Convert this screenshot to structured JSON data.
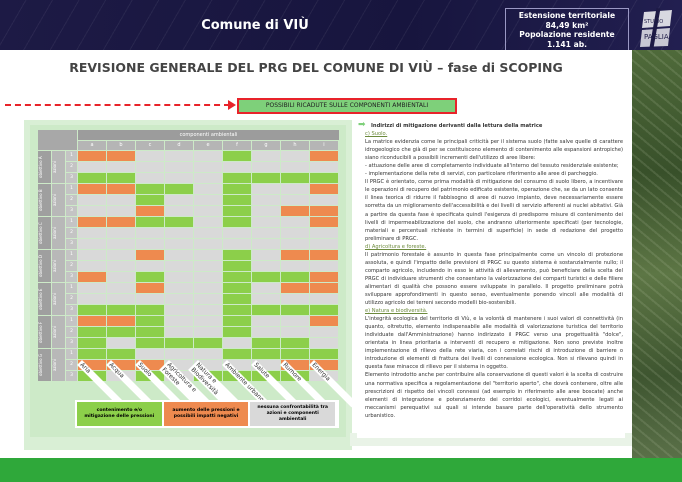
{
  "header": {
    "town": "Comune di VIÙ",
    "info": [
      "Estensione territoriale",
      "84,49 km²",
      "Popolazione residente",
      "1.141 ab."
    ],
    "logo": "STUDIO PAGLIA"
  },
  "title": "REVISIONE GENERALE DEL PRG DEL COMUNE DI VIÙ – fase di SCOPING",
  "banner": "POSSIBILI RICADUTE SULLE COMPONENTI AMBIENTALI",
  "matrix": {
    "header": "componenti ambientali",
    "columns": [
      "a",
      "b",
      "c",
      "d",
      "e",
      "f",
      "g",
      "h",
      "i"
    ],
    "column_labels": [
      "Aria",
      "Acqua",
      "Suolo",
      "Agricoltura e\nForeste",
      "Natura e\nBiodiversità",
      "Ambiente urbano",
      "Salute",
      "Rumore",
      "Energia"
    ],
    "actions_label": "azioni",
    "objectives": [
      {
        "label": "obiettivo A",
        "rows": [
          "OONNNGNNO",
          "NNNNNNNNN",
          "GGNNNGGGG"
        ]
      },
      {
        "label": "obiettivo B",
        "rows": [
          "OOGGNGNNO",
          "NNGNNGNNN",
          "NNONNGNOO"
        ]
      },
      {
        "label": "obiettivo C",
        "rows": [
          "OOGGNGNNO",
          "NNNNNNNNN",
          "NNNNNNNNN"
        ]
      },
      {
        "label": "obiettivo D",
        "rows": [
          "NNONNGNOO",
          "NNNNNGNNN",
          "ONGNNGGGO"
        ]
      },
      {
        "label": "obiettivo E",
        "rows": [
          "NNONNGNOO",
          "NNNNNGNNN",
          "GGGNNGGGG"
        ]
      },
      {
        "label": "obiettivo F",
        "rows": [
          "OOGNNGNNO",
          "GGGNNGNNN",
          "GNGGGNGGN"
        ]
      },
      {
        "label": "obiettivo G",
        "rows": [
          "GGNNNGGGG",
          "OOONNNNOO",
          "GNGNGGGGN"
        ]
      }
    ],
    "legend": [
      {
        "code": "G",
        "text": "contenimento e/o mitigazione delle pressioni"
      },
      {
        "code": "O",
        "text": "aumento delle pressioni e possibili impatti negativi"
      },
      {
        "code": "N",
        "text": "nessuna confrontabilità tra azioni e componenti ambientali"
      }
    ]
  },
  "text": {
    "heading": "Indirizzi di mitigazione derivanti dalla lettura della matrice",
    "s1": "c) Suolo.",
    "p1": "La matrice evidenzia come le principali criticità per il sistema suolo (fatte salve quelle di carattere idrogeologico che già di per se costituiscono elemento di contenimento alle espansioni antropiche) siano riconducibili a possibili incrementi dell'utilizzo di aree libere:",
    "p2": "- attuazione delle aree di completamento individuate all'interno del tessuto residenziale esistente;",
    "p3": "- implementazione della rete di servizi, con particolare riferimento alle aree di parcheggio.",
    "p4": "Il PRGC è orientato, come prima modalità di mitigazione del consumo di suolo libero, a incentivare le operazioni di recupero del patrimonio edificato esistente, operazione che, se da un lato consente il linea teorica di ridurre il fabbisogno di aree di nuovo impianto, deve necessariamente essere sorretta da un miglioramento dell'accessibilità e dei livelli di servizio afferenti ai nuclei abitativi. Già a partire da questa fase è specificata quindi l'esigenza di predisporre misure di contenimento dei livelli di impermeabilizzazione del suolo, che andranno ulteriormente specificati (per tecnologie, materiali e percentuali richieste in termini di superficie) in sede di redazione del progetto preliminare di PRGC.",
    "s2": "d) Agricoltura e foreste.",
    "p5": "Il patrimonio forestale è assunto in questa fase principalmente come un vincolo di protezione assoluta, e quindi l'impatto delle previsioni di PRGC su questo sistema è sostanzialmente nullo; il comparto agricolo, includendo in esso le attività di allevamento, può beneficiare della scelta del PRGC di individuare strumenti che consentano la valorizzazione dei comparti turistici e delle filiere alimentari di qualità che possono essere sviluppate in parallelo. Il progetto preliminare potrà sviluppare approfondimenti in questo senso, eventualmente ponendo vincoli alle modalità di utilizzo agricolo dei terreni secondo modelli bio-sostenibili.",
    "s3": "e) Natura e biodiversità.",
    "p6": "L'integrità ecologica del territorio di Viù, e la volontà di mantenere i suoi valori di connettività (in quanto, oltretutto, elemento indispensabile alle modalità di valorizzazione turistica del territorio individuate dall'Amministrazione) hanno indirizzato il PRGC verso una progettualità \"dolce\", orientata in linea prioritaria a interventi di recupero e mitigazione. Non sono previste inoltre implementazione di rilievo della rete viaria, con i correlati rischi di introduzione di barriere o introduzione di elementi di frattura dei livelli di connessione ecologica. Non si rilevano quindi in questa fase minacce di rilievo per il sistema in oggetto.",
    "p7": "Elemento introdotto anche per contribuire alla conservazione di questi valori è la scelta di costruire una normativa specifica a regolamentazione del \"territorio aperto\", che dovrà contenere, oltre alle prescrizioni di rispetto dei vincoli connessi (ad esempio in riferimento alle aree boscate) anche elementi di integrazione e potenziamento dei corridoi ecologici, eventualmente legati ai meccanismi perequativi sui quali si intende basare parte dell'operatività dello strumento urbanistico."
  },
  "colors": {
    "header": "#1d1a45",
    "green": "#8ccf4a",
    "orange": "#ee8a4f",
    "grey": "#d9d9d9",
    "footer": "#2fa83a",
    "accent": "#e8232a"
  }
}
